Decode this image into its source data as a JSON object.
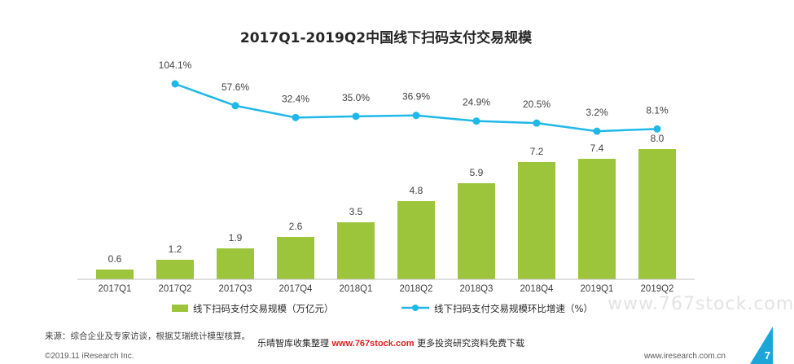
{
  "chart_data": {
    "type": "bar+line",
    "title": "2017Q1-2019Q2中国线下扫码支付交易规模",
    "categories": [
      "2017Q1",
      "2017Q2",
      "2017Q3",
      "2017Q4",
      "2018Q1",
      "2018Q2",
      "2018Q3",
      "2018Q4",
      "2019Q1",
      "2019Q2"
    ],
    "series": [
      {
        "name": "线下扫码支付交易规模（万亿元）",
        "type": "bar",
        "color": "#9dc53b",
        "values": [
          0.6,
          1.2,
          1.9,
          2.6,
          3.5,
          4.8,
          5.9,
          7.2,
          7.4,
          8.0
        ],
        "labels": [
          "0.6",
          "1.2",
          "1.9",
          "2.6",
          "3.5",
          "4.8",
          "5.9",
          "7.2",
          "7.4",
          "8.0"
        ]
      },
      {
        "name": "线下扫码支付交易规模环比增速（%）",
        "type": "line",
        "color": "#1fb8e8",
        "values": [
          null,
          104.1,
          57.6,
          32.4,
          35.0,
          36.9,
          24.9,
          20.5,
          3.2,
          8.1
        ],
        "labels": [
          "",
          "104.1%",
          "57.6%",
          "32.4%",
          "35.0%",
          "36.9%",
          "24.9%",
          "20.5%",
          "3.2%",
          "8.1%"
        ]
      }
    ],
    "legend": "bottom",
    "grid": false
  },
  "source_note": "来源：综合企业及专家访谈，根据艾瑞统计模型核算。",
  "banner": {
    "prefix": "乐晴智库收集整理",
    "url": "www.767stock.com",
    "suffix": "更多投资研究资料免费下载"
  },
  "watermark": "www.767stock.com",
  "footer": {
    "copyright": "©2019.11 iResearch Inc.",
    "site": "www.iresearch.com.cn",
    "page": "7"
  }
}
